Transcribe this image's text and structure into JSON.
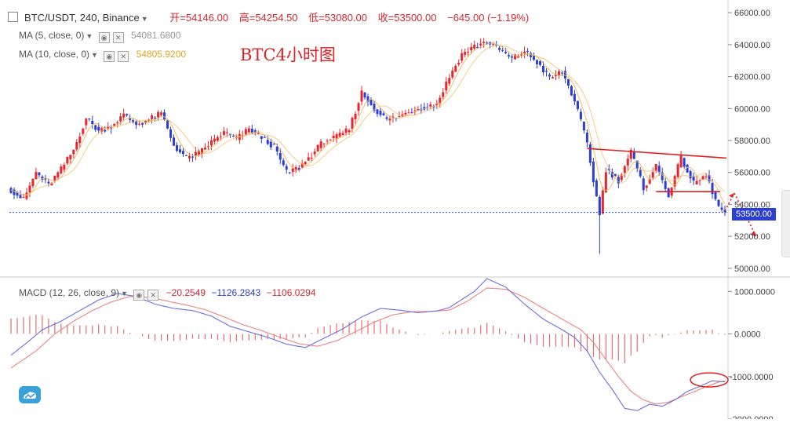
{
  "header": {
    "symbol": "BTC/USDT, 240, Binance",
    "open_label": "开",
    "open": "54146.00",
    "high_label": "高",
    "high": "54254.50",
    "low_label": "低",
    "low": "53080.00",
    "close_label": "收",
    "close": "53500.00",
    "change": "−645.00 (−1.19%)"
  },
  "ma5": {
    "label": "MA (5, close, 0)",
    "value": "54081.6800",
    "color": "#e8a21e"
  },
  "ma10": {
    "label": "MA (10, close, 0)",
    "value": "54805.9200",
    "color": "#e8a21e"
  },
  "annotation_title": "BTC4小时图",
  "macd_legend": {
    "label": "MACD (12, 26, close, 9)",
    "hist": "−20.2549",
    "macd": "−1126.2843",
    "signal": "−1106.0294"
  },
  "last_price_tag": "53500.00",
  "colors": {
    "up": "#e8262e",
    "down": "#2b3fd6",
    "ma": "#f0b659",
    "signal": "#f08080",
    "macd": "#6d6ee0"
  },
  "chart_data": [
    {
      "type": "candlestick",
      "title": "BTC/USDT, 240, Binance",
      "y_ticks": [
        50000,
        52000,
        54000,
        56000,
        58000,
        60000,
        62000,
        64000,
        66000
      ],
      "y_tick_labels": [
        "50000.00",
        "52000.00",
        "54000.00",
        "56000.00",
        "58000.00",
        "60000.00",
        "62000.00",
        "64000.00",
        "66000.00"
      ],
      "ylim": [
        49500,
        66600
      ],
      "last_price": 53500,
      "anchors_close": [
        [
          0,
          54900
        ],
        [
          4,
          54300
        ],
        [
          8,
          56000
        ],
        [
          12,
          55200
        ],
        [
          16,
          56200
        ],
        [
          20,
          57400
        ],
        [
          24,
          59400
        ],
        [
          28,
          58600
        ],
        [
          32,
          58900
        ],
        [
          36,
          59600
        ],
        [
          40,
          59000
        ],
        [
          44,
          59300
        ],
        [
          48,
          59700
        ],
        [
          52,
          57700
        ],
        [
          56,
          56900
        ],
        [
          60,
          57200
        ],
        [
          64,
          57900
        ],
        [
          68,
          58500
        ],
        [
          72,
          58100
        ],
        [
          76,
          58700
        ],
        [
          80,
          58200
        ],
        [
          84,
          57600
        ],
        [
          88,
          56000
        ],
        [
          92,
          56300
        ],
        [
          96,
          57100
        ],
        [
          100,
          58000
        ],
        [
          104,
          58200
        ],
        [
          108,
          58700
        ],
        [
          112,
          61000
        ],
        [
          116,
          60000
        ],
        [
          120,
          59300
        ],
        [
          124,
          59500
        ],
        [
          128,
          59900
        ],
        [
          132,
          60100
        ],
        [
          136,
          60300
        ],
        [
          140,
          62000
        ],
        [
          144,
          63400
        ],
        [
          148,
          63900
        ],
        [
          152,
          64200
        ],
        [
          156,
          63700
        ],
        [
          160,
          63100
        ],
        [
          164,
          63600
        ],
        [
          168,
          62900
        ],
        [
          172,
          61900
        ],
        [
          176,
          62300
        ],
        [
          180,
          60500
        ],
        [
          184,
          57800
        ],
        [
          186,
          55500
        ],
        [
          188,
          53400
        ],
        [
          190,
          56200
        ],
        [
          194,
          55500
        ],
        [
          198,
          57300
        ],
        [
          202,
          55000
        ],
        [
          206,
          56400
        ],
        [
          210,
          54600
        ],
        [
          214,
          56900
        ],
        [
          218,
          55300
        ],
        [
          222,
          55800
        ],
        [
          226,
          53800
        ],
        [
          228,
          53500
        ]
      ],
      "moving_averages": [
        "MA (5, close, 0)",
        "MA (10, close, 0)"
      ],
      "trendlines": [
        "descending resistance",
        "horizontal level"
      ],
      "annotation": "BTC4小时图"
    },
    {
      "type": "macd",
      "title": "MACD (12, 26, close, 9)",
      "y_ticks": [
        1000,
        0,
        -1000,
        -2000
      ],
      "y_tick_labels": [
        "1000.0000",
        "0.0000",
        "-1000.0000",
        "-2000.0000"
      ],
      "ylim": [
        -2000,
        1300
      ],
      "macd_anchors": [
        [
          0,
          -500
        ],
        [
          6,
          -150
        ],
        [
          10,
          100
        ],
        [
          16,
          300
        ],
        [
          22,
          550
        ],
        [
          28,
          800
        ],
        [
          34,
          950
        ],
        [
          40,
          880
        ],
        [
          46,
          700
        ],
        [
          52,
          600
        ],
        [
          58,
          550
        ],
        [
          64,
          420
        ],
        [
          70,
          180
        ],
        [
          76,
          50
        ],
        [
          82,
          -80
        ],
        [
          88,
          -240
        ],
        [
          94,
          -320
        ],
        [
          100,
          -100
        ],
        [
          106,
          120
        ],
        [
          112,
          400
        ],
        [
          118,
          600
        ],
        [
          124,
          560
        ],
        [
          130,
          500
        ],
        [
          136,
          540
        ],
        [
          140,
          620
        ],
        [
          148,
          1000
        ],
        [
          152,
          1300
        ],
        [
          158,
          1100
        ],
        [
          164,
          700
        ],
        [
          170,
          350
        ],
        [
          176,
          100
        ],
        [
          180,
          -80
        ],
        [
          184,
          -400
        ],
        [
          188,
          -900
        ],
        [
          192,
          -1300
        ],
        [
          196,
          -1750
        ],
        [
          200,
          -1800
        ],
        [
          204,
          -1650
        ],
        [
          208,
          -1700
        ],
        [
          212,
          -1550
        ],
        [
          216,
          -1350
        ],
        [
          220,
          -1230
        ],
        [
          224,
          -1100
        ],
        [
          228,
          -1126
        ]
      ],
      "signal_anchors": [
        [
          0,
          -800
        ],
        [
          8,
          -400
        ],
        [
          14,
          0
        ],
        [
          20,
          300
        ],
        [
          26,
          550
        ],
        [
          32,
          750
        ],
        [
          38,
          880
        ],
        [
          44,
          860
        ],
        [
          50,
          770
        ],
        [
          56,
          680
        ],
        [
          62,
          570
        ],
        [
          68,
          400
        ],
        [
          74,
          220
        ],
        [
          80,
          80
        ],
        [
          86,
          -80
        ],
        [
          92,
          -230
        ],
        [
          98,
          -290
        ],
        [
          104,
          -160
        ],
        [
          110,
          50
        ],
        [
          116,
          280
        ],
        [
          122,
          450
        ],
        [
          128,
          520
        ],
        [
          134,
          530
        ],
        [
          140,
          560
        ],
        [
          146,
          780
        ],
        [
          152,
          1080
        ],
        [
          158,
          1050
        ],
        [
          164,
          860
        ],
        [
          170,
          600
        ],
        [
          176,
          350
        ],
        [
          182,
          100
        ],
        [
          186,
          -200
        ],
        [
          190,
          -600
        ],
        [
          194,
          -1000
        ],
        [
          198,
          -1350
        ],
        [
          202,
          -1550
        ],
        [
          206,
          -1650
        ],
        [
          210,
          -1600
        ],
        [
          214,
          -1480
        ],
        [
          218,
          -1360
        ],
        [
          222,
          -1240
        ],
        [
          226,
          -1130
        ],
        [
          228,
          -1106
        ]
      ],
      "hist_last": -20.2549,
      "macd_last": -1126.2843,
      "signal_last": -1106.0294
    }
  ]
}
